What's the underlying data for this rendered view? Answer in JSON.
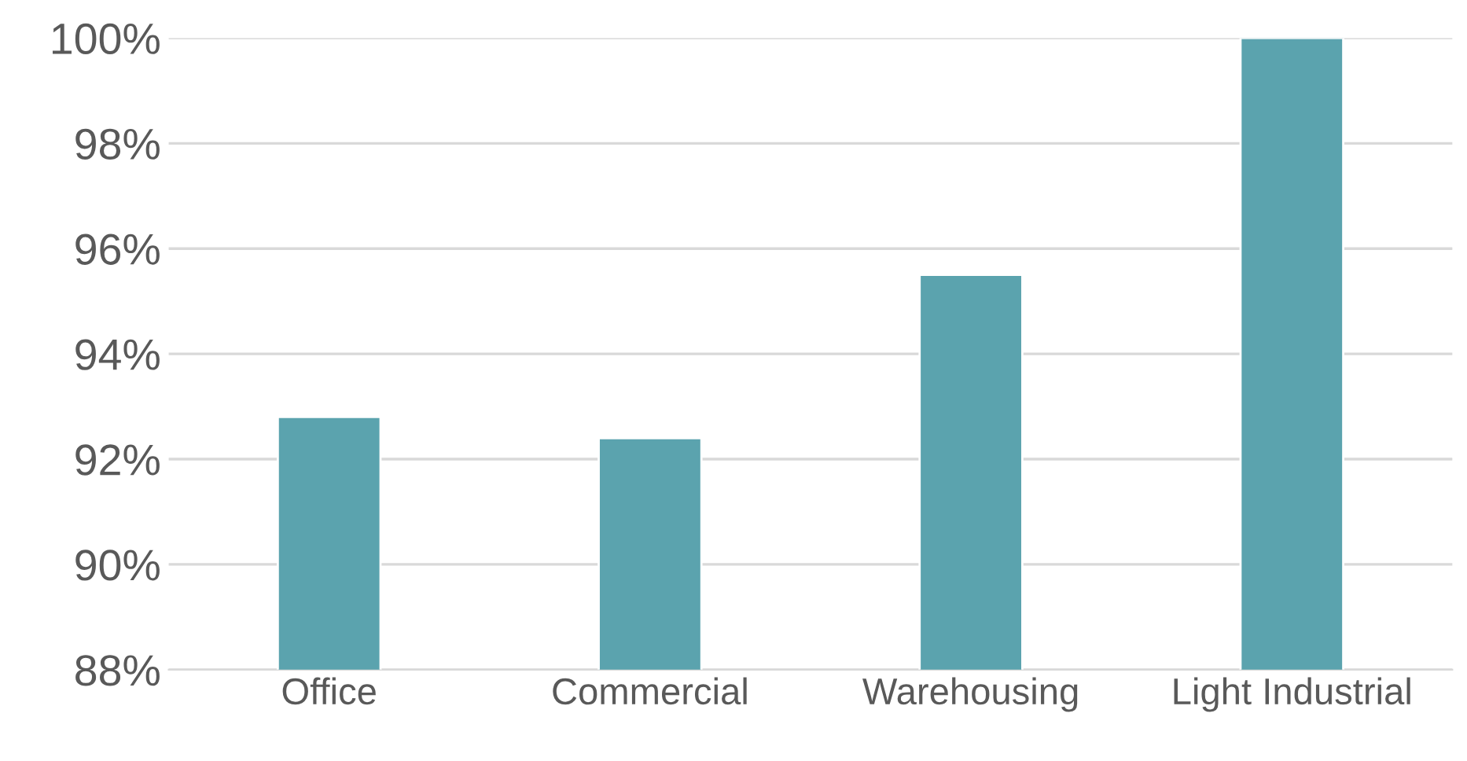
{
  "chart_data": {
    "type": "bar",
    "categories": [
      "Office",
      "Commercial",
      "Warehousing",
      "Light Industrial"
    ],
    "values": [
      92.8,
      92.4,
      95.5,
      100
    ],
    "color": "#5ba3ae",
    "ylim": [
      88,
      100
    ],
    "yticks": [
      {
        "value": 88,
        "label": "88%"
      },
      {
        "value": 90,
        "label": "90%"
      },
      {
        "value": 92,
        "label": "92%"
      },
      {
        "value": 94,
        "label": "94%"
      },
      {
        "value": 96,
        "label": "96%"
      },
      {
        "value": 98,
        "label": "98%"
      },
      {
        "value": 100,
        "label": "100%"
      }
    ],
    "grid": "y"
  }
}
